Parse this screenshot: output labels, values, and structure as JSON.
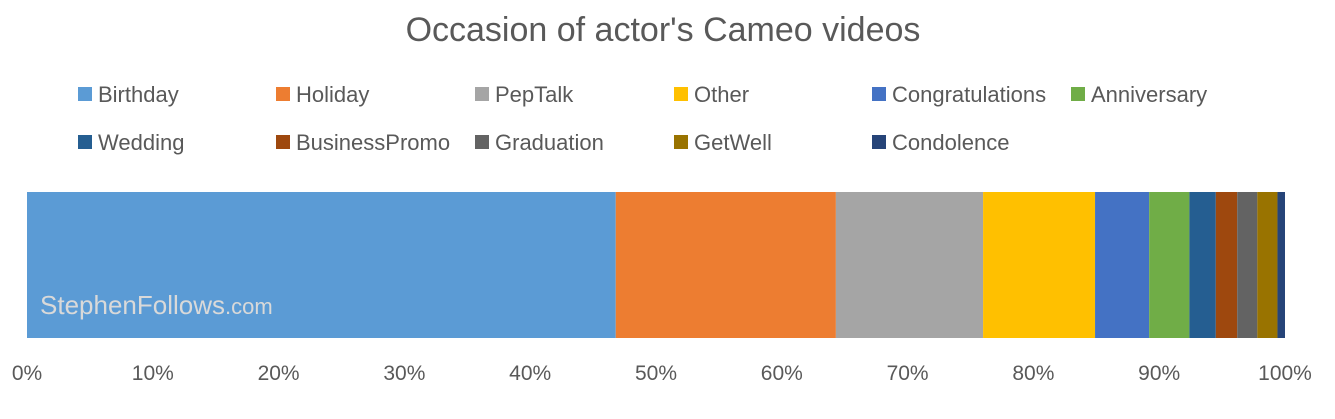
{
  "chart_data": {
    "type": "bar",
    "orientation": "horizontal",
    "stacked": "percent",
    "title": "Occasion of actor's Cameo videos",
    "watermark": {
      "main": "StephenFollows",
      "suffix": ".com"
    },
    "xlim": [
      0,
      100
    ],
    "x_ticks": [
      "0%",
      "10%",
      "20%",
      "30%",
      "40%",
      "50%",
      "60%",
      "70%",
      "80%",
      "90%",
      "100%"
    ],
    "grid": false,
    "legend_position": "top",
    "series": [
      {
        "name": "Birthday",
        "value": 46.8,
        "color": "#5b9bd5"
      },
      {
        "name": "Holiday",
        "value": 17.5,
        "color": "#ed7d31"
      },
      {
        "name": "PepTalk",
        "value": 11.7,
        "color": "#a5a5a5"
      },
      {
        "name": "Other",
        "value": 8.9,
        "color": "#ffc000"
      },
      {
        "name": "Congratulations",
        "value": 4.3,
        "color": "#4472c4"
      },
      {
        "name": "Anniversary",
        "value": 3.2,
        "color": "#70ad47"
      },
      {
        "name": "Wedding",
        "value": 2.1,
        "color": "#255e91"
      },
      {
        "name": "BusinessPromo",
        "value": 1.7,
        "color": "#9e480e"
      },
      {
        "name": "Graduation",
        "value": 1.6,
        "color": "#636363"
      },
      {
        "name": "GetWell",
        "value": 1.6,
        "color": "#997300"
      },
      {
        "name": "Condolence",
        "value": 0.6,
        "color": "#264478"
      }
    ]
  }
}
